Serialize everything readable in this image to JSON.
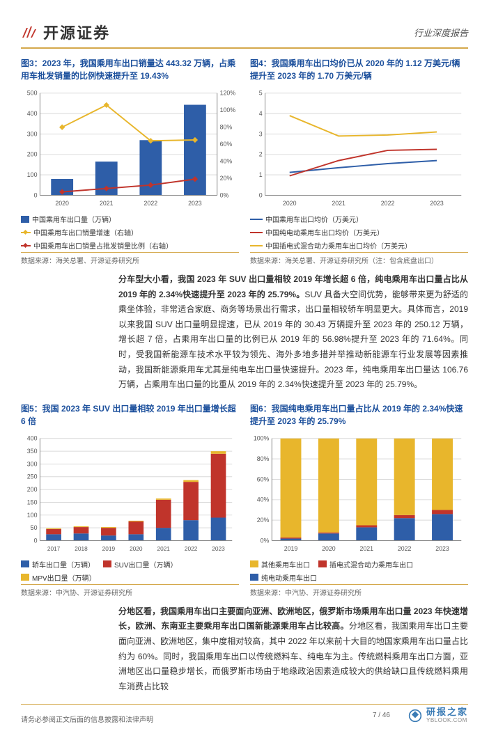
{
  "logo_text": "开源证券",
  "header_right": "行业深度报告",
  "page_num": "7 / 46",
  "footer_left": "请务必参阅正文后面的信息披露和法律声明",
  "watermark": {
    "top": "研报之家",
    "bot": "YBLOOK.COM"
  },
  "colors": {
    "brand_border": "#d4a84b",
    "title_blue": "#1b4f9c",
    "blue": "#2e5ea8",
    "red": "#c0342b",
    "yellow": "#e8b62c",
    "orange": "#d98e2b",
    "axis": "#888",
    "grid": "#d9d9d9",
    "bg": "#ffffff"
  },
  "fig3": {
    "title": "图3：2023 年，我国乘用车出口销量达 443.32 万辆，占乘用车批发销量的比例快速提升至 19.43%",
    "type": "bar-line-dual-axis",
    "categories": [
      "2020",
      "2021",
      "2022",
      "2023"
    ],
    "bar_values": [
      80,
      165,
      270,
      443
    ],
    "line_yellow": [
      80,
      106,
      64,
      65
    ],
    "line_red": [
      4,
      8,
      12,
      19
    ],
    "ylim_left": [
      0,
      500
    ],
    "ytick_left": [
      0,
      100,
      200,
      300,
      400,
      500
    ],
    "ylim_right": [
      0,
      120
    ],
    "ytick_right": [
      "0%",
      "20%",
      "40%",
      "60%",
      "80%",
      "100%",
      "120%"
    ],
    "bar_color": "#2e5ea8",
    "line_yellow_color": "#e8b62c",
    "line_red_color": "#c0342b",
    "legend": [
      "中国乘用车出口量（万辆）",
      "中国乘用车出口销量增速（右轴）",
      "中国乘用车出口销量占批发销量比例（右轴）"
    ],
    "source": "数据来源：海关总署、开源证券研究所"
  },
  "fig4": {
    "title": "图4：我国乘用车出口均价已从 2020 年的 1.12 万美元/辆提升至 2023 年的 1.70 万美元/辆",
    "type": "line",
    "categories": [
      "2020",
      "2021",
      "2022",
      "2023"
    ],
    "series": [
      {
        "name": "中国乘用车出口均价（万美元）",
        "color": "#2e5ea8",
        "vals": [
          1.12,
          1.35,
          1.55,
          1.7
        ]
      },
      {
        "name": "中国纯电动乘用车出口均价（万美元）",
        "color": "#c0342b",
        "vals": [
          0.95,
          1.7,
          2.2,
          2.25
        ]
      },
      {
        "name": "中国插电式混合动力乘用车出口均价（万美元）",
        "color": "#e8b62c",
        "vals": [
          3.9,
          2.9,
          2.95,
          3.1
        ]
      }
    ],
    "ylim": [
      0,
      5
    ],
    "ytick": [
      0,
      1,
      2,
      3,
      4,
      5
    ],
    "source": "数据来源：海关总署、开源证券研究所（注：包含底盘出口）"
  },
  "para1": "分车型大小看，我国 2023 年 SUV 出口量相较 2019 年增长超 6 倍，纯电乘用车出口量占比从 2019 年的 2.34%快速提升至 2023 年的 25.79%。",
  "para1_rest": "SUV 具备大空间优势，能够带来更为舒适的乘坐体验，非常适合家庭、商务等场景出行需求，出口量相较轿车明显更大。具体而言，2019 以来我国 SUV 出口量明显提速，已从 2019 年的 30.43 万辆提升至 2023 年的 250.12 万辆，增长超 7 倍，占乘用车出口量的比例已从 2019 年的 56.98%提升至 2023 年的 71.64%。同时，受我国新能源车技术水平较为领先、海外多地多措并举推动新能源车行业发展等因素推动，我国新能源乘用车尤其是纯电车出口量快速提升。2023 年，纯电乘用车出口量达 106.76 万辆，占乘用车出口量的比重从 2019 年的 2.34%快速提升至 2023 年的 25.79%。",
  "fig5": {
    "title": "图5：我国 2023 年 SUV 出口量相较 2019 年出口量增长超 6 倍",
    "type": "stacked-bar",
    "categories": [
      "2017",
      "2018",
      "2019",
      "2020",
      "2021",
      "2022",
      "2023"
    ],
    "series": [
      {
        "name": "轿车出口量（万辆）",
        "color": "#2e5ea8",
        "vals": [
          25,
          28,
          20,
          25,
          50,
          80,
          90
        ]
      },
      {
        "name": "SUV出口量（万辆）",
        "color": "#c0342b",
        "vals": [
          20,
          25,
          30,
          50,
          110,
          150,
          250
        ]
      },
      {
        "name": "MPV出口量（万辆）",
        "color": "#e8b62c",
        "vals": [
          3,
          3,
          3,
          3,
          5,
          7,
          10
        ]
      }
    ],
    "ylim": [
      0,
      400
    ],
    "ytick": [
      0,
      50,
      100,
      150,
      200,
      250,
      300,
      350,
      400
    ],
    "source": "数据来源：中汽协、开源证券研究所"
  },
  "fig6": {
    "title": "图6：我国纯电乘用车出口量占比从 2019 年的 2.34%快速提升至 2023 年的 25.79%",
    "type": "stacked-bar-100",
    "categories": [
      "2019",
      "2020",
      "2021",
      "2022",
      "2023"
    ],
    "series": [
      {
        "name": "其他乘用车出口",
        "color": "#e8b62c",
        "vals": [
          97,
          92,
          85,
          75,
          70
        ]
      },
      {
        "name": "插电式混合动力乘用车出口",
        "color": "#c0342b",
        "vals": [
          1,
          1,
          2,
          3,
          4
        ]
      },
      {
        "name": "纯电动乘用车出口",
        "color": "#2e5ea8",
        "vals": [
          2,
          7,
          13,
          22,
          26
        ]
      }
    ],
    "ylim": [
      0,
      100
    ],
    "ytick": [
      "0%",
      "20%",
      "40%",
      "60%",
      "80%",
      "100%"
    ],
    "source": "数据来源：中汽协、开源证券研究所"
  },
  "para2": "分地区看，我国乘用车出口主要面向亚洲、欧洲地区，俄罗斯市场乘用车出口量 2023 年快速增长，欧洲、东南亚主要乘用车出口国新能源乘用车占比较高。",
  "para2_rest": "分地区看，我国乘用车出口主要面向亚洲、欧洲地区，集中度相对较高，其中 2022 年以来前十大目的地国家乘用车出口量占比约为 60%。同时，我国乘用车出口以传统燃料车、纯电车为主。传统燃料乘用车出口方面，亚洲地区出口量稳步增长，而俄罗斯市场由于地缘政治因素造成较大的供给缺口且传统燃料乘用车消费占比较"
}
